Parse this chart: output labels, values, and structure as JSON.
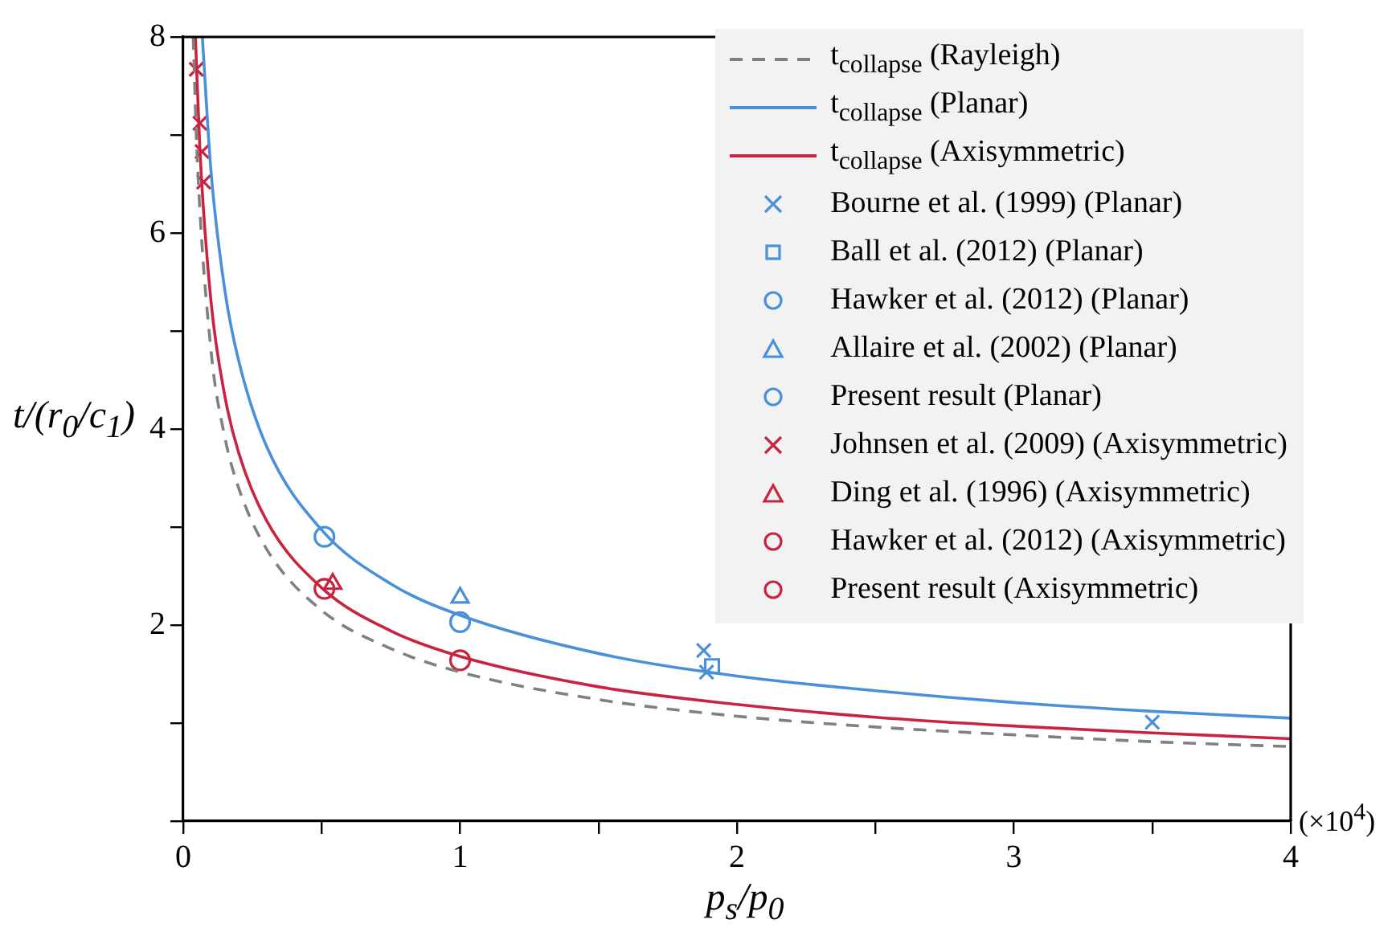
{
  "chart_data": {
    "type": "scatter",
    "xlabel": "p$_{s}$/p$_{0}$",
    "ylabel": "t/(r$_{0}$/c$_{1}$)",
    "xlim": [
      0,
      4
    ],
    "ylim": [
      0,
      8
    ],
    "xticks": [
      0,
      {
        "value": 0.5,
        "label": null
      },
      1,
      {
        "value": 1.5,
        "label": null
      },
      2,
      {
        "value": 2.5,
        "label": null
      },
      3,
      {
        "value": 3.5,
        "label": null
      },
      4
    ],
    "yticks": [
      {
        "value": 0,
        "label": null
      },
      {
        "value": 1,
        "label": null
      },
      2,
      {
        "value": 3,
        "label": null
      },
      4,
      {
        "value": 5,
        "label": null
      },
      6,
      {
        "value": 7,
        "label": null
      },
      8
    ],
    "grid": false,
    "legend": "top right",
    "annotations": [
      "(×10$^{4}$)"
    ],
    "series": [
      {
        "name": "t$_{collapse}$ (Rayleigh)",
        "type": "line",
        "color": "#808080",
        "line_style": "dashed",
        "marker": "none",
        "x": [
          0.036,
          0.05,
          0.1,
          0.15,
          0.2,
          0.3,
          0.5,
          0.75,
          1,
          1.5,
          2,
          2.5,
          3,
          3.5,
          4
        ],
        "values": [
          8.0,
          6.8,
          4.81,
          3.92,
          3.4,
          2.78,
          2.15,
          1.76,
          1.52,
          1.24,
          1.07,
          0.96,
          0.88,
          0.81,
          0.76
        ]
      },
      {
        "name": "t$_{collapse}$ (Planar)",
        "type": "line",
        "color": "#4a90d9",
        "line_style": "solid",
        "marker": "none",
        "x": [
          0.069,
          0.1,
          0.15,
          0.2,
          0.3,
          0.5,
          0.75,
          1,
          1.5,
          2,
          2.5,
          3,
          3.5,
          4
        ],
        "values": [
          8.0,
          6.64,
          5.42,
          4.7,
          3.83,
          2.97,
          2.42,
          2.1,
          1.71,
          1.48,
          1.33,
          1.21,
          1.12,
          1.05
        ]
      },
      {
        "name": "t$_{collapse}$ (Axisymmetric)",
        "type": "line",
        "color": "#c8243f",
        "line_style": "solid",
        "marker": "none",
        "x": [
          0.044,
          0.06,
          0.1,
          0.15,
          0.2,
          0.3,
          0.5,
          0.75,
          1,
          1.5,
          2,
          2.5,
          3,
          3.5,
          4
        ],
        "values": [
          8.0,
          6.86,
          5.31,
          4.34,
          3.76,
          3.07,
          2.38,
          1.94,
          1.68,
          1.37,
          1.19,
          1.06,
          0.97,
          0.9,
          0.84
        ]
      },
      {
        "name": "Bourne et al. (1999) (Planar)",
        "color": "#4a90d9",
        "marker": "cross",
        "x": [
          1.88,
          1.89,
          3.5
        ],
        "values": [
          1.74,
          1.52,
          1.01
        ]
      },
      {
        "name": "Ball et al. (2012) (Planar)",
        "color": "#4a90d9",
        "marker": "square",
        "x": [
          1.91
        ],
        "values": [
          1.58
        ]
      },
      {
        "name": "Hawker et al. (2012) (Planar)",
        "color": "#4a90d9",
        "marker": "circle",
        "x": [
          1.0
        ],
        "values": [
          2.03
        ]
      },
      {
        "name": "Allaire et al. (2002) (Planar)",
        "color": "#4a90d9",
        "marker": "triangle",
        "x": [
          1.0
        ],
        "values": [
          2.28
        ]
      },
      {
        "name": "Present result (Planar)",
        "color": "#4a90d9",
        "marker": "circle",
        "x": [
          0.51
        ],
        "values": [
          2.9
        ]
      },
      {
        "name": "Johnsen et al. (2009) (Axisymmetric)",
        "color": "#c8243f",
        "marker": "cross",
        "x": [
          0.047,
          0.06,
          0.068,
          0.074
        ],
        "values": [
          7.67,
          7.12,
          6.83,
          6.52
        ]
      },
      {
        "name": "Ding et al. (1996) (Axisymmetric)",
        "color": "#c8243f",
        "marker": "triangle",
        "x": [
          0.54
        ],
        "values": [
          2.42
        ]
      },
      {
        "name": "Hawker et al. (2012) (Axisymmetric)",
        "color": "#c8243f",
        "marker": "circle",
        "x": [
          1.0
        ],
        "values": [
          1.64
        ]
      },
      {
        "name": "Present result (Axisymmetric)",
        "color": "#c8243f",
        "marker": "circle",
        "x": [
          0.51
        ],
        "values": [
          2.37
        ]
      }
    ]
  }
}
